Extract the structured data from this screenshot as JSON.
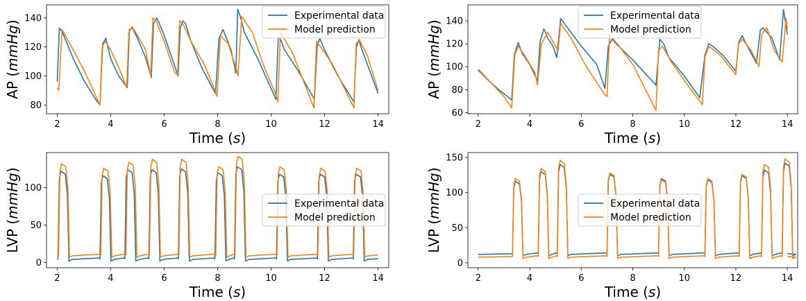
{
  "colors": {
    "experimental": "#1f77b4",
    "model": "#ff7f0e"
  },
  "chart_data": [
    {
      "type": "line",
      "panel": "top-left",
      "xlabel": "Time (s)",
      "ylabel": "AP (mmHg)",
      "xlim": [
        1.6,
        14.4
      ],
      "ylim": [
        74,
        149
      ],
      "xticks": [
        "2",
        "4",
        "6",
        "8",
        "10",
        "12",
        "14"
      ],
      "yticks": [
        "80",
        "100",
        "120",
        "140"
      ],
      "legend_position": "top-right",
      "series": [
        {
          "name": "Experimental data",
          "color": "#1f77b4",
          "x": [
            2.0,
            2.08,
            2.2,
            2.6,
            3.0,
            3.4,
            3.6,
            3.7,
            3.82,
            4.0,
            4.3,
            4.62,
            4.7,
            4.82,
            5.0,
            5.3,
            5.52,
            5.6,
            5.72,
            5.8,
            6.0,
            6.3,
            6.52,
            6.6,
            6.7,
            6.8,
            7.0,
            7.4,
            7.8,
            7.92,
            8.05,
            8.2,
            8.5,
            8.68,
            8.75,
            8.85,
            9.0,
            9.5,
            10.18,
            10.27,
            10.36,
            10.5,
            11.0,
            11.62,
            11.72,
            11.82,
            12.0,
            12.5,
            13.1,
            13.19,
            13.28,
            13.4,
            14.0
          ],
          "y": [
            96,
            133,
            130,
            112,
            97,
            85,
            80,
            122,
            126,
            112,
            100,
            92,
            132,
            133,
            126,
            113,
            99,
            136,
            140,
            137,
            128,
            112,
            100,
            133,
            138,
            136,
            124,
            106,
            92,
            88,
            126,
            132,
            118,
            102,
            146,
            141,
            130,
            112,
            84,
            127,
            125,
            118,
            104,
            84,
            120,
            126,
            118,
            100,
            82,
            120,
            125,
            118,
            88
          ]
        },
        {
          "name": "Model prediction",
          "color": "#ff7f0e",
          "x": [
            2.0,
            2.06,
            2.18,
            2.6,
            3.0,
            3.4,
            3.6,
            3.68,
            3.8,
            4.0,
            4.3,
            4.6,
            4.68,
            4.8,
            5.0,
            5.3,
            5.5,
            5.58,
            5.7,
            6.0,
            6.4,
            6.5,
            6.58,
            6.7,
            7.0,
            7.5,
            7.9,
            7.98,
            8.1,
            8.4,
            8.68,
            8.76,
            8.9,
            9.3,
            9.7,
            10.16,
            10.25,
            10.35,
            10.8,
            11.6,
            11.7,
            11.85,
            12.3,
            13.1,
            13.18,
            13.3,
            13.6,
            14.0
          ],
          "y": [
            92,
            90,
            132,
            118,
            104,
            88,
            80,
            120,
            124,
            118,
            106,
            92,
            130,
            134,
            128,
            118,
            100,
            140,
            138,
            124,
            102,
            101,
            138,
            136,
            124,
            108,
            90,
            86,
            128,
            122,
            106,
            100,
            141,
            130,
            108,
            88,
            82,
            130,
            116,
            78,
            124,
            120,
            108,
            78,
            122,
            125,
            114,
            90
          ]
        }
      ]
    },
    {
      "type": "line",
      "panel": "top-right",
      "xlabel": "Time (s)",
      "ylabel": "AP (mmHg)",
      "xlim": [
        1.6,
        14.4
      ],
      "ylim": [
        59,
        154
      ],
      "xticks": [
        "2",
        "4",
        "6",
        "8",
        "10",
        "12",
        "14"
      ],
      "yticks": [
        "60",
        "80",
        "100",
        "120",
        "140"
      ],
      "legend_position": "top-center",
      "series": [
        {
          "name": "Experimental data",
          "color": "#1f77b4",
          "x": [
            2.0,
            2.4,
            2.8,
            3.3,
            3.4,
            3.55,
            3.7,
            4.0,
            4.3,
            4.4,
            4.55,
            4.7,
            4.9,
            5.05,
            5.2,
            5.4,
            5.6,
            6.0,
            6.6,
            6.92,
            7.05,
            7.2,
            7.4,
            8.0,
            8.9,
            9.05,
            9.2,
            9.4,
            10.0,
            10.6,
            10.8,
            10.95,
            11.1,
            11.5,
            12.0,
            12.12,
            12.25,
            12.4,
            12.8,
            12.95,
            13.05,
            13.4,
            13.7,
            13.85,
            14.0
          ],
          "y": [
            97,
            88,
            80,
            71,
            110,
            121,
            112,
            102,
            88,
            122,
            133,
            125,
            118,
            108,
            142,
            136,
            130,
            118,
            102,
            81,
            118,
            124,
            119,
            106,
            84,
            124,
            120,
            108,
            92,
            73,
            110,
            120,
            118,
            110,
            96,
            122,
            127,
            120,
            103,
            132,
            134,
            125,
            106,
            150,
            128
          ]
        },
        {
          "name": "Model prediction",
          "color": "#ff7f0e",
          "x": [
            2.0,
            2.5,
            3.0,
            3.3,
            3.42,
            3.55,
            3.8,
            4.2,
            4.3,
            4.45,
            4.7,
            5.0,
            5.1,
            5.2,
            5.6,
            6.2,
            6.9,
            7.0,
            7.1,
            7.4,
            8.0,
            8.9,
            9.0,
            9.15,
            9.5,
            10.2,
            10.7,
            10.8,
            10.95,
            11.4,
            12.0,
            12.1,
            12.25,
            12.6,
            12.9,
            13.0,
            13.2,
            13.5,
            13.8,
            13.95,
            14.0
          ],
          "y": [
            98,
            86,
            74,
            64,
            110,
            118,
            110,
            95,
            84,
            120,
            130,
            118,
            114,
            138,
            125,
            100,
            76,
            74,
            128,
            120,
            102,
            62,
            114,
            118,
            104,
            82,
            67,
            108,
            118,
            110,
            93,
            120,
            124,
            114,
            100,
            128,
            134,
            114,
            104,
            142,
            133
          ]
        }
      ]
    },
    {
      "type": "line",
      "panel": "bottom-left",
      "xlabel": "Time (s)",
      "ylabel": "LVP (mmHg)",
      "xlim": [
        1.6,
        14.4
      ],
      "ylim": [
        -7,
        147
      ],
      "xticks": [
        "2",
        "4",
        "6",
        "8",
        "10",
        "12",
        "14"
      ],
      "yticks": [
        "0",
        "50",
        "100"
      ],
      "legend_position": "center-right",
      "series": [
        {
          "name": "Experimental data",
          "color": "#1f77b4",
          "beats": [
            [
              2.08,
              122
            ],
            [
              3.65,
              116
            ],
            [
              4.58,
              124
            ],
            [
              5.48,
              124
            ],
            [
              6.58,
              125
            ],
            [
              7.95,
              120
            ],
            [
              8.68,
              128
            ],
            [
              10.25,
              118
            ],
            [
              11.78,
              118
            ],
            [
              13.12,
              118
            ]
          ],
          "baseline": 4
        },
        {
          "name": "Model prediction",
          "color": "#ff7f0e",
          "beats": [
            [
              2.1,
              132
            ],
            [
              3.68,
              126
            ],
            [
              4.62,
              134
            ],
            [
              5.5,
              138
            ],
            [
              6.6,
              138
            ],
            [
              7.98,
              128
            ],
            [
              8.7,
              142
            ],
            [
              10.27,
              128
            ],
            [
              11.8,
              126
            ],
            [
              13.14,
              126
            ]
          ],
          "baseline": 9
        }
      ]
    },
    {
      "type": "line",
      "panel": "bottom-right",
      "xlabel": "Time (s)",
      "ylabel": "LVP (mmHg)",
      "xlim": [
        1.6,
        14.4
      ],
      "ylim": [
        -7,
        157
      ],
      "xticks": [
        "2",
        "4",
        "6",
        "8",
        "10",
        "12",
        "14"
      ],
      "yticks": [
        "0",
        "50",
        "100",
        "150"
      ],
      "legend_position": "center",
      "series": [
        {
          "name": "Experimental data",
          "color": "#1f77b4",
          "beats": [
            [
              3.38,
              116
            ],
            [
              4.38,
              130
            ],
            [
              5.12,
              140
            ],
            [
              7.05,
              126
            ],
            [
              9.05,
              120
            ],
            [
              10.85,
              118
            ],
            [
              12.18,
              124
            ],
            [
              13.05,
              132
            ],
            [
              13.85,
              142
            ]
          ],
          "baseline": 12
        },
        {
          "name": "Model prediction",
          "color": "#ff7f0e",
          "beats": [
            [
              3.38,
              120
            ],
            [
              4.38,
              134
            ],
            [
              5.12,
              146
            ],
            [
              7.05,
              128
            ],
            [
              9.05,
              118
            ],
            [
              10.85,
              120
            ],
            [
              12.18,
              126
            ],
            [
              13.05,
              140
            ],
            [
              13.85,
              148
            ]
          ],
          "baseline": 8
        }
      ]
    }
  ]
}
